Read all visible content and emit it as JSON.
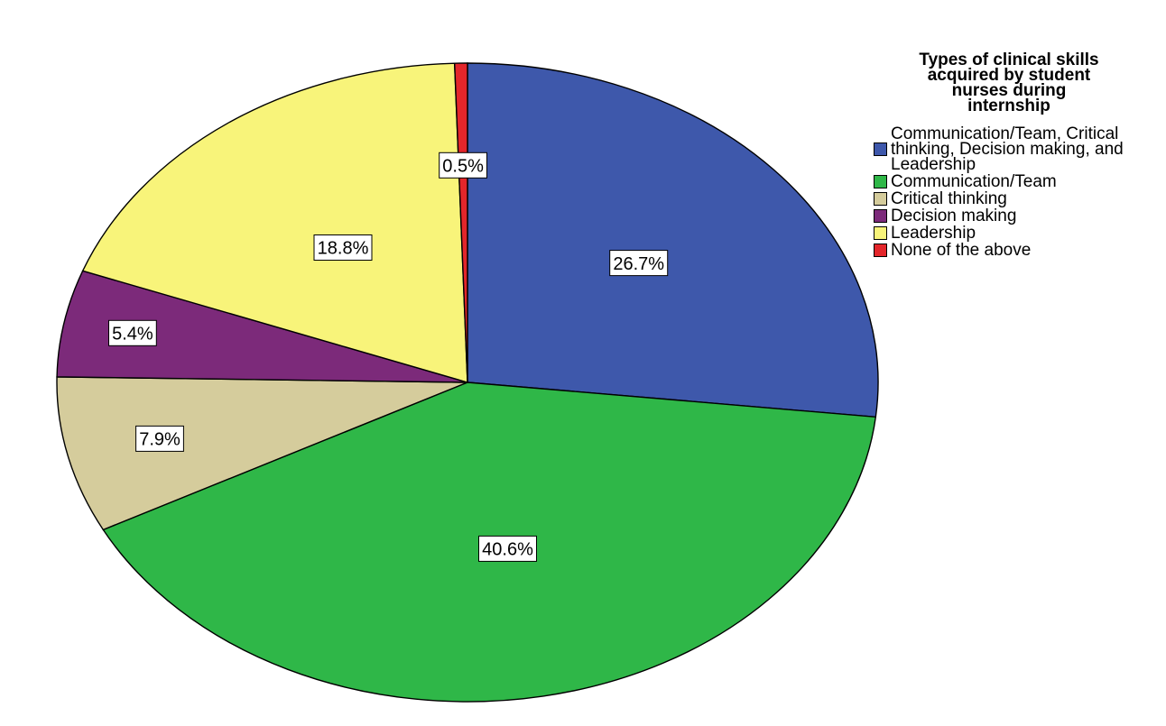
{
  "chart_data": {
    "type": "pie",
    "title": "Types of clinical skills acquired by student nurses during internship",
    "legend_position": "right",
    "slices": [
      {
        "label": "Communication/Team, Critical thinking, Decision making, and Leadership",
        "value": 26.7,
        "display": "26.7%",
        "color": "#3e58ab"
      },
      {
        "label": "Communication/Team",
        "value": 40.6,
        "display": "40.6%",
        "color": "#2fb748"
      },
      {
        "label": "Critical thinking",
        "value": 7.9,
        "display": "7.9%",
        "color": "#d5cc9c"
      },
      {
        "label": "Decision making",
        "value": 5.4,
        "display": "5.4%",
        "color": "#7c2a7a"
      },
      {
        "label": "Leadership",
        "value": 18.8,
        "display": "18.8%",
        "color": "#f8f47a"
      },
      {
        "label": "None of the above",
        "value": 0.5,
        "display": "0.5%",
        "color": "#e3262b"
      }
    ]
  }
}
